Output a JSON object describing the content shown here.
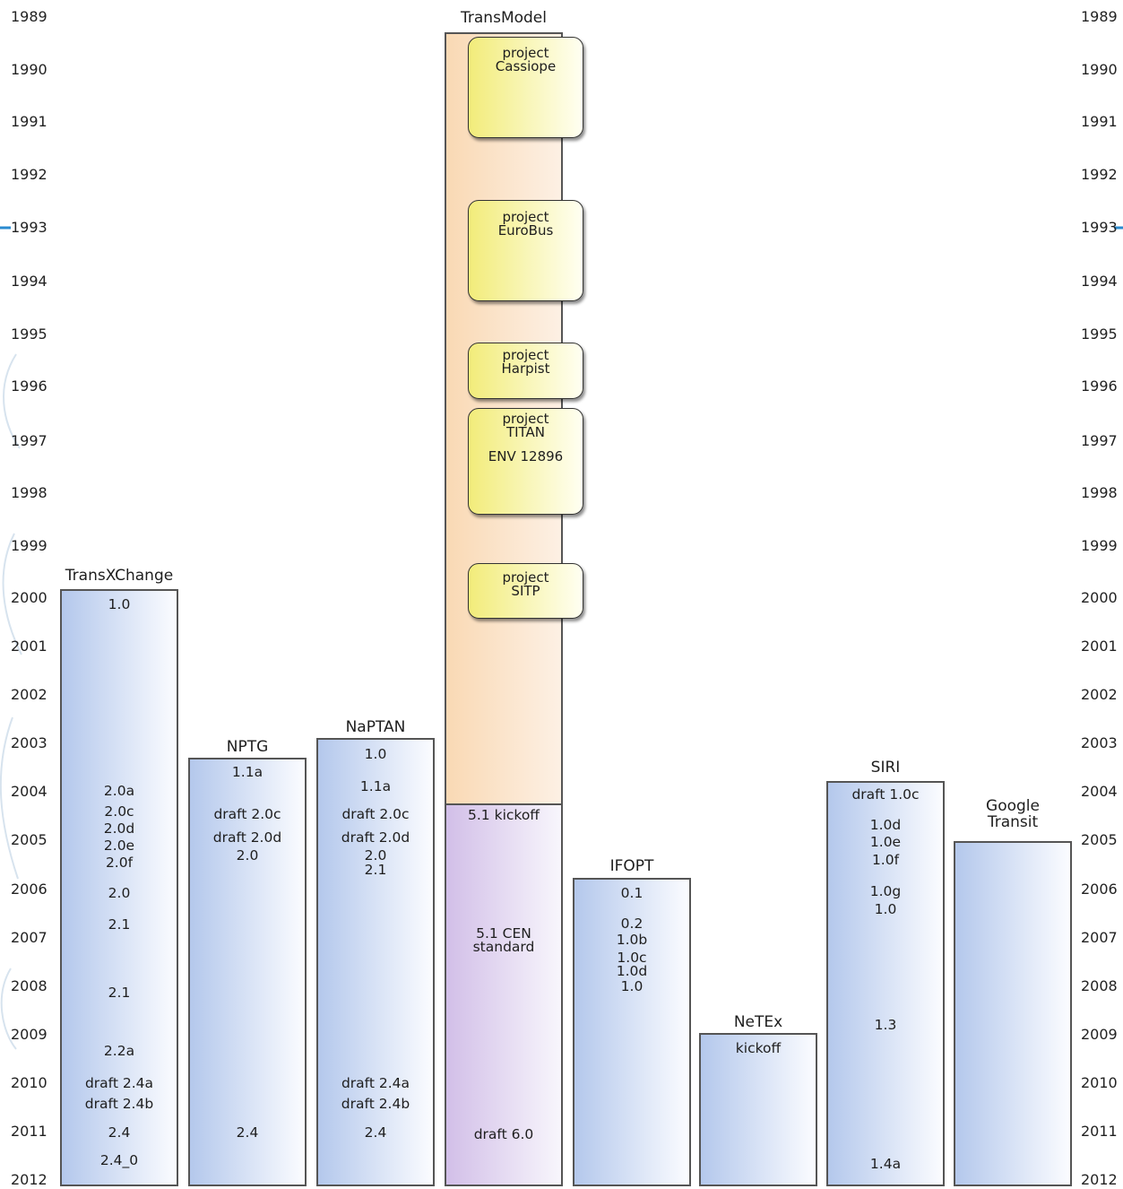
{
  "years": [
    "1989",
    "1990",
    "1991",
    "1992",
    "1993",
    "1994",
    "1995",
    "1996",
    "1997",
    "1998",
    "1999",
    "2000",
    "2001",
    "2002",
    "2003",
    "2004",
    "2005",
    "2006",
    "2007",
    "2008",
    "2009",
    "2010",
    "2011",
    "2012"
  ],
  "columns": [
    {
      "id": "transxchange",
      "title": "TransXChange",
      "versions": [
        "1.0",
        "2.0a",
        "2.0c",
        "2.0d",
        "2.0e",
        "2.0f",
        "2.0",
        "2.1",
        "2.1",
        "2.2a",
        "draft 2.4a",
        "draft 2.4b",
        "2.4",
        "2.4_0"
      ]
    },
    {
      "id": "nptg",
      "title": "NPTG",
      "versions": [
        "1.1a",
        "draft 2.0c",
        "draft 2.0d",
        "2.0",
        "2.4"
      ]
    },
    {
      "id": "naptan",
      "title": "NaPTAN",
      "versions": [
        "1.0",
        "1.1a",
        "draft 2.0c",
        "draft 2.0d",
        "2.0",
        "2.1",
        "draft 2.4a",
        "draft 2.4b",
        "2.4"
      ]
    },
    {
      "id": "ifopt",
      "title": "IFOPT",
      "versions": [
        "0.1",
        "0.2",
        "1.0b",
        "1.0c",
        "1.0d",
        "1.0"
      ]
    },
    {
      "id": "netex",
      "title": "NeTEx",
      "versions": [
        "kickoff"
      ]
    },
    {
      "id": "siri",
      "title": "SIRI",
      "versions": [
        "draft 1.0c",
        "1.0d",
        "1.0e",
        "1.0f",
        "1.0g",
        "1.0",
        "1.3",
        "1.4a"
      ]
    },
    {
      "id": "google-transit",
      "title": "Google\nTransit",
      "versions": []
    }
  ],
  "transmodel": {
    "title": "TransModel",
    "projects": [
      "project\nCassiope",
      "project\nEuroBus",
      "project\nHarpist",
      "project\nTITAN",
      "project\nSITP"
    ],
    "env": "ENV 12896",
    "versions": [
      "5.1 kickoff",
      "5.1 CEN\nstandard",
      "draft 6.0"
    ]
  }
}
